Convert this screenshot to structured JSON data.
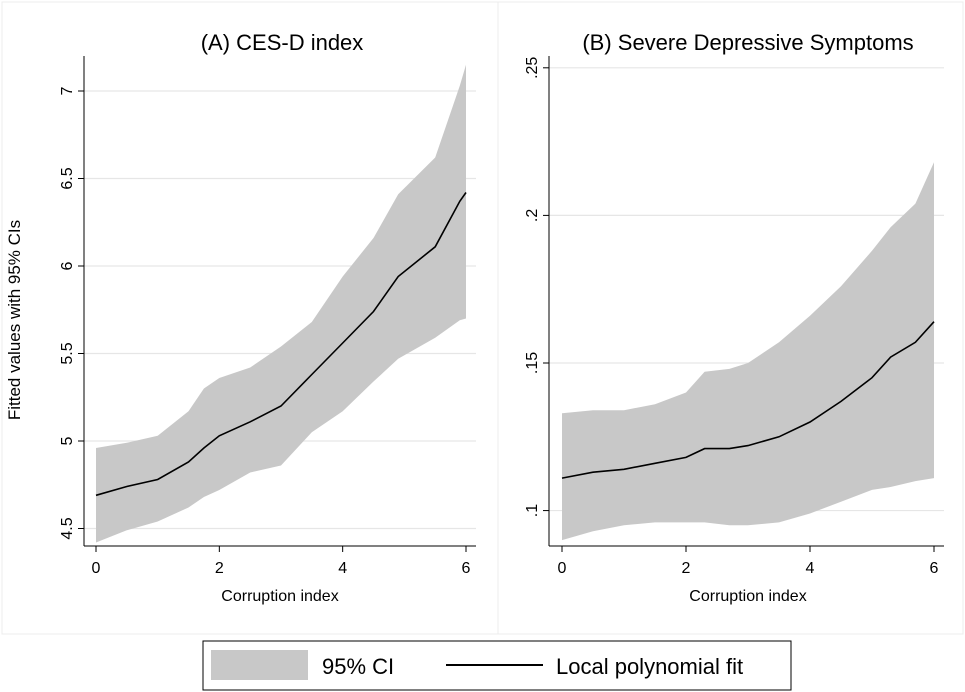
{
  "figure": {
    "shared_ylabel": "Fitted values with 95% CIs",
    "legend": {
      "ci_label": "95% CI",
      "fit_label": "Local polynomial fit"
    },
    "colors": {
      "ci_band": "#c8c8c8",
      "fit_line": "#000000",
      "grid": "#e6e6e6",
      "axis": "#000000",
      "panel_border": "#ececec"
    }
  },
  "chart_data": [
    {
      "type": "area",
      "title": "(A) CES-D index",
      "xlabel": "Corruption index",
      "ylabel": "Fitted values with 95% CIs",
      "xlim": [
        0,
        6
      ],
      "ylim": [
        4.4,
        7.2
      ],
      "x_ticks": [
        0,
        2,
        4,
        6
      ],
      "x_tick_labels": [
        "0",
        "2",
        "4",
        "6"
      ],
      "y_ticks": [
        4.5,
        5,
        5.5,
        6,
        6.5,
        7
      ],
      "y_tick_labels": [
        "4.5",
        "5",
        "5.5",
        "6",
        "6.5",
        "7"
      ],
      "grid": true,
      "legend_position": "bottom",
      "series": [
        {
          "name": "95% CI",
          "kind": "band",
          "x": [
            0,
            0.5,
            1,
            1.5,
            1.75,
            2,
            2.5,
            3,
            3.5,
            4,
            4.5,
            4.9,
            5.5,
            5.9,
            6
          ],
          "lower": [
            4.42,
            4.49,
            4.54,
            4.62,
            4.68,
            4.72,
            4.82,
            4.86,
            5.05,
            5.17,
            5.34,
            5.47,
            5.59,
            5.69,
            5.7
          ],
          "upper": [
            4.96,
            4.99,
            5.03,
            5.17,
            5.3,
            5.36,
            5.42,
            5.54,
            5.68,
            5.94,
            6.16,
            6.41,
            6.62,
            7.03,
            7.15
          ]
        },
        {
          "name": "Local polynomial fit",
          "kind": "line",
          "x": [
            0,
            0.5,
            1,
            1.5,
            1.75,
            2,
            2.5,
            3,
            3.5,
            4,
            4.5,
            4.9,
            5.5,
            5.9,
            6
          ],
          "y": [
            4.69,
            4.74,
            4.78,
            4.88,
            4.96,
            5.03,
            5.11,
            5.2,
            5.38,
            5.56,
            5.74,
            5.94,
            6.11,
            6.37,
            6.42
          ]
        }
      ]
    },
    {
      "type": "area",
      "title": "(B) Severe Depressive Symptoms",
      "xlabel": "Corruption index",
      "ylabel": "",
      "xlim": [
        0,
        6
      ],
      "ylim": [
        0.088,
        0.254
      ],
      "x_ticks": [
        0,
        2,
        4,
        6
      ],
      "x_tick_labels": [
        "0",
        "2",
        "4",
        "6"
      ],
      "y_ticks": [
        0.1,
        0.15,
        0.2,
        0.25
      ],
      "y_tick_labels": [
        ".1",
        ".15",
        ".2",
        ".25"
      ],
      "grid": true,
      "legend_position": "bottom",
      "series": [
        {
          "name": "95% CI",
          "kind": "band",
          "x": [
            0,
            0.5,
            1,
            1.5,
            2,
            2.3,
            2.7,
            3,
            3.5,
            4,
            4.5,
            5,
            5.3,
            5.7,
            6
          ],
          "lower": [
            0.09,
            0.093,
            0.095,
            0.096,
            0.096,
            0.096,
            0.095,
            0.095,
            0.096,
            0.099,
            0.103,
            0.107,
            0.108,
            0.11,
            0.111
          ],
          "upper": [
            0.133,
            0.134,
            0.134,
            0.136,
            0.14,
            0.147,
            0.148,
            0.15,
            0.157,
            0.166,
            0.176,
            0.188,
            0.196,
            0.204,
            0.218
          ]
        },
        {
          "name": "Local polynomial fit",
          "kind": "line",
          "x": [
            0,
            0.5,
            1,
            1.5,
            2,
            2.3,
            2.7,
            3,
            3.5,
            4,
            4.5,
            5,
            5.3,
            5.7,
            6
          ],
          "y": [
            0.111,
            0.113,
            0.114,
            0.116,
            0.118,
            0.121,
            0.121,
            0.122,
            0.125,
            0.13,
            0.137,
            0.145,
            0.152,
            0.157,
            0.164
          ]
        }
      ]
    }
  ]
}
